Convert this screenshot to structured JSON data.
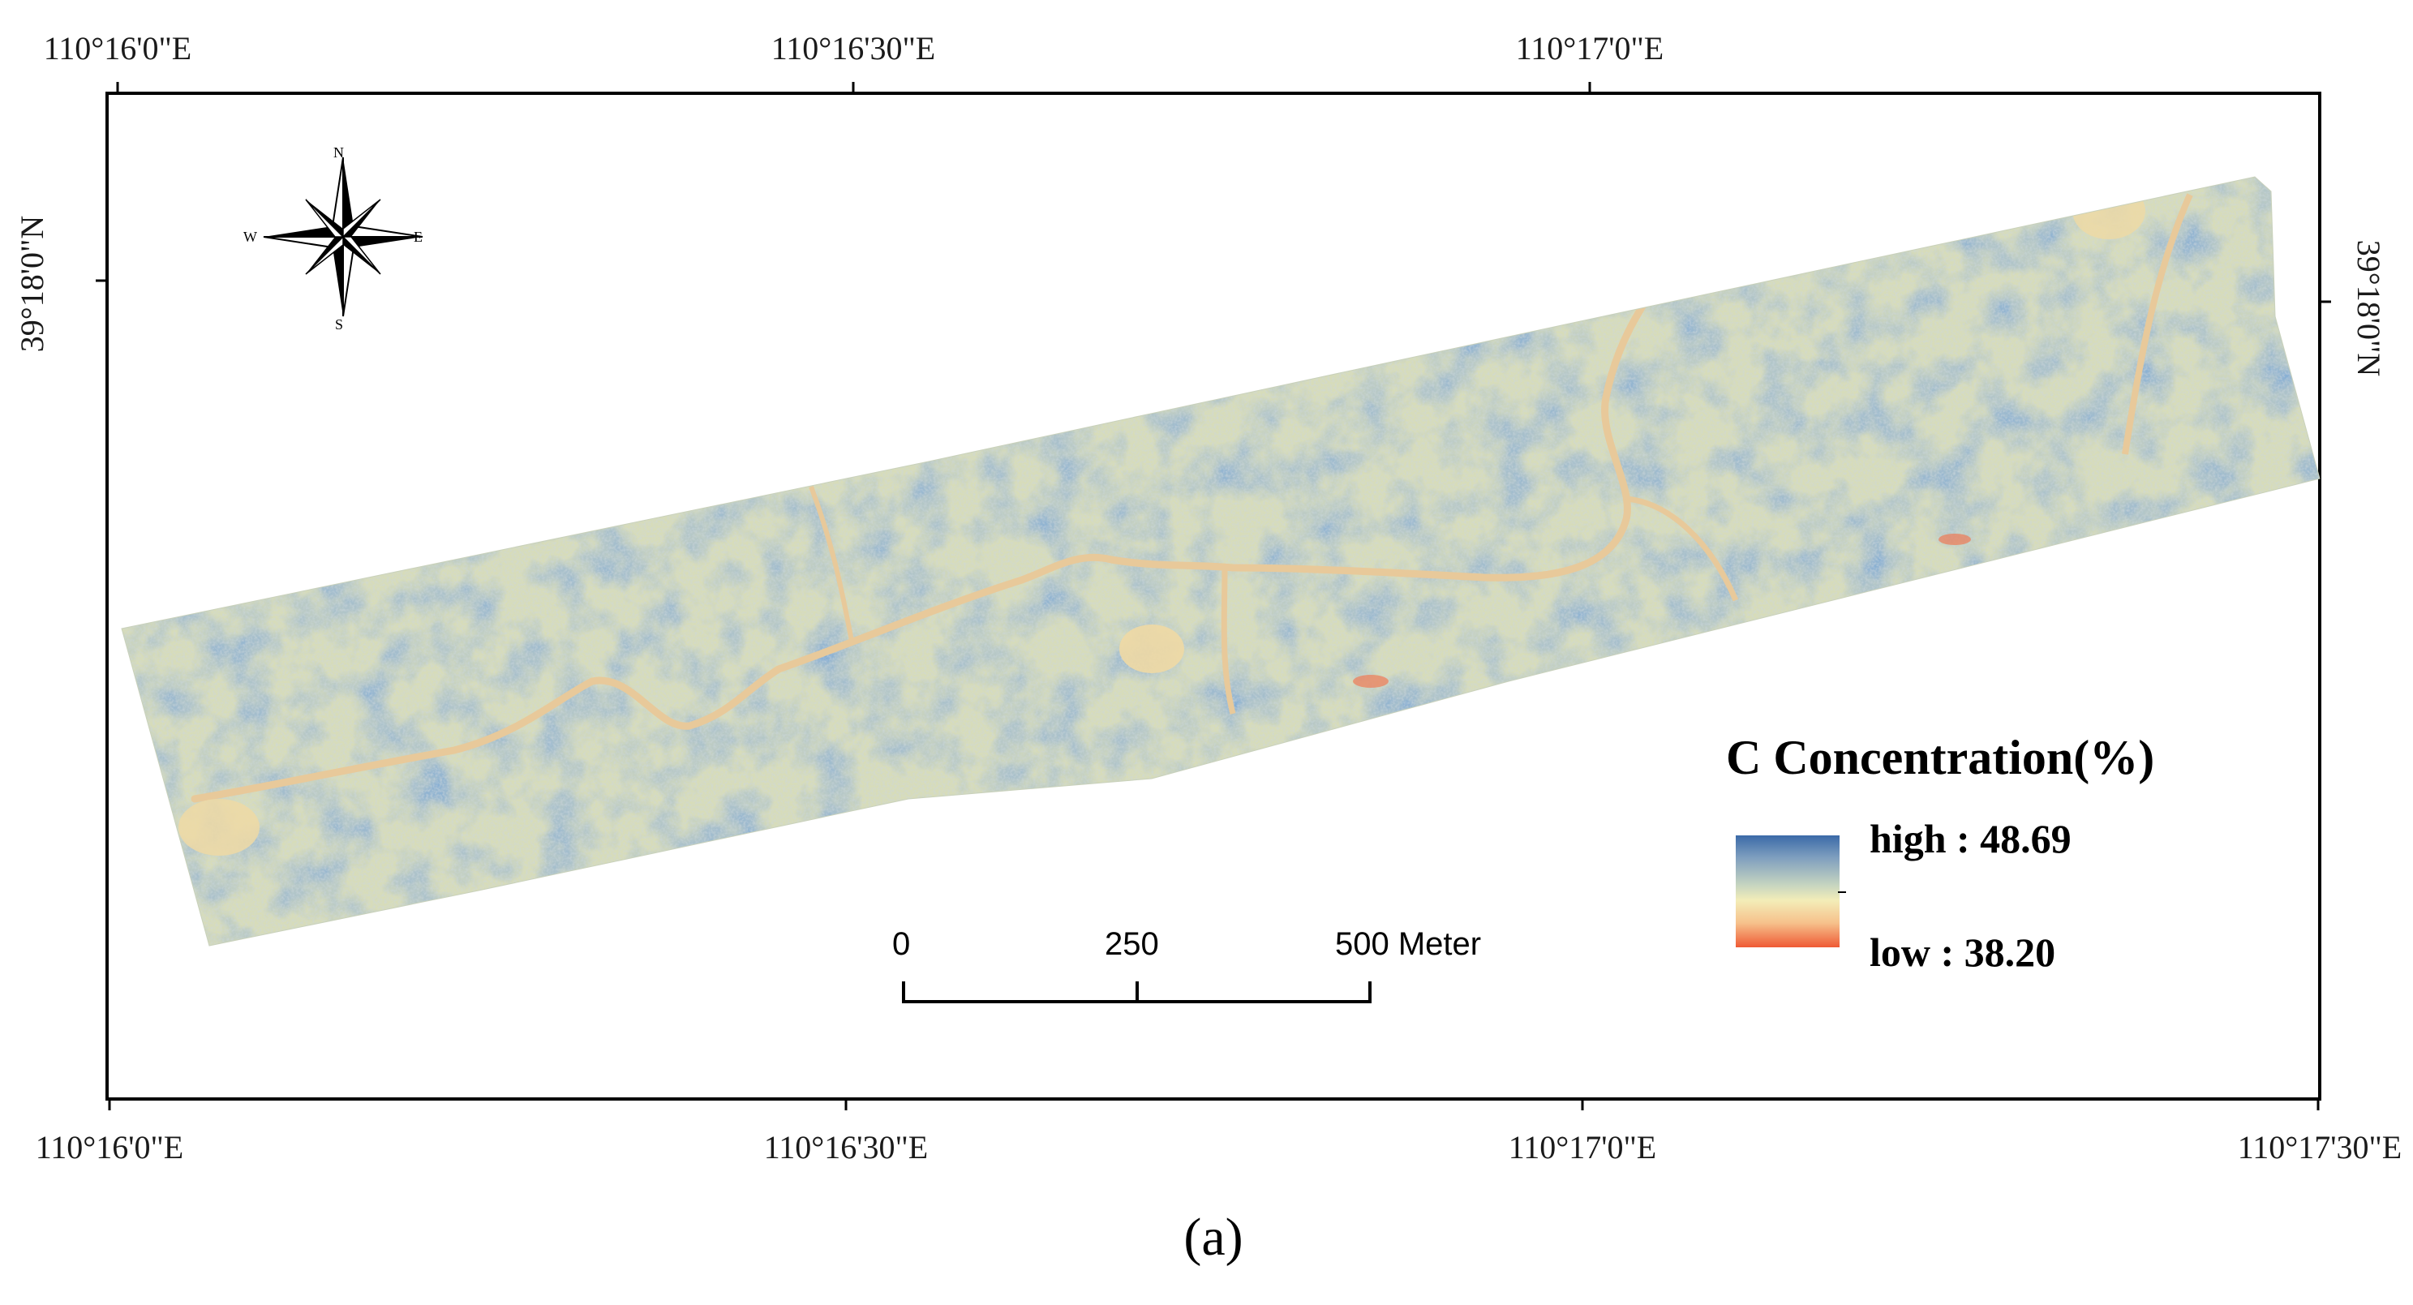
{
  "coordinates": {
    "top_longitudes": [
      "110°16'0\"E",
      "110°16'30\"E",
      "110°17'0\"E"
    ],
    "bottom_longitudes": [
      "110°16'0\"E",
      "110°16'30\"E",
      "110°17'0\"E",
      "110°17'30\"E"
    ],
    "latitude_left": "39°18'0\"N",
    "latitude_right": "39°18'0\"N"
  },
  "legend": {
    "title": "C Concentration(%)",
    "high_label": "high : 48.69",
    "low_label": "low : 38.20",
    "high_value": 48.69,
    "low_value": 38.2,
    "high_color": "#3b6aa8",
    "mid_color": "#f3edb8",
    "low_color": "#ef5a35"
  },
  "scale_bar": {
    "labels": [
      "0",
      "250",
      "500 Meter"
    ]
  },
  "north_arrow": {
    "icon": "compass-rose-icon",
    "n": "N",
    "e": "E",
    "s": "S",
    "w": "W"
  },
  "caption": "(a)"
}
